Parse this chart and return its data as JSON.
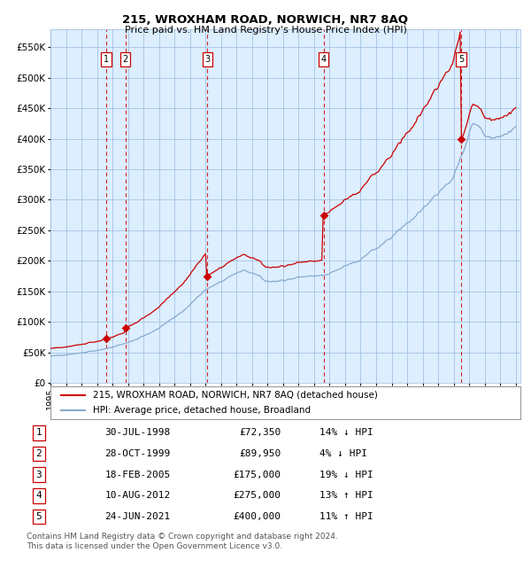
{
  "title": "215, WROXHAM ROAD, NORWICH, NR7 8AQ",
  "subtitle": "Price paid vs. HM Land Registry's House Price Index (HPI)",
  "ylim": [
    0,
    580000
  ],
  "yticks": [
    0,
    50000,
    100000,
    150000,
    200000,
    250000,
    300000,
    350000,
    400000,
    450000,
    500000,
    550000
  ],
  "ytick_labels": [
    "£0",
    "£50K",
    "£100K",
    "£150K",
    "£200K",
    "£250K",
    "£300K",
    "£350K",
    "£400K",
    "£450K",
    "£500K",
    "£550K"
  ],
  "xlim": [
    1995,
    2025.5
  ],
  "background_color": "#ddeeff",
  "red_line_color": "#cc0000",
  "blue_line_color": "#88aacc",
  "sale_marker_color": "#cc0000",
  "vline_color": "#cc0000",
  "grid_color": "#99bbdd",
  "transactions": [
    {
      "num": 1,
      "date_dec": 1998.58,
      "price": 72350,
      "label": "30-JUL-1998",
      "price_str": "£72,350",
      "pct": "14%",
      "dir": "↓"
    },
    {
      "num": 2,
      "date_dec": 1999.83,
      "price": 89950,
      "label": "28-OCT-1999",
      "price_str": "£89,950",
      "pct": "4%",
      "dir": "↓"
    },
    {
      "num": 3,
      "date_dec": 2005.12,
      "price": 175000,
      "label": "18-FEB-2005",
      "price_str": "£175,000",
      "pct": "19%",
      "dir": "↓"
    },
    {
      "num": 4,
      "date_dec": 2012.61,
      "price": 275000,
      "label": "10-AUG-2012",
      "price_str": "£275,000",
      "pct": "13%",
      "dir": "↑"
    },
    {
      "num": 5,
      "date_dec": 2021.48,
      "price": 400000,
      "label": "24-JUN-2021",
      "price_str": "£400,000",
      "pct": "11%",
      "dir": "↑"
    }
  ],
  "legend_line1": "215, WROXHAM ROAD, NORWICH, NR7 8AQ (detached house)",
  "legend_line2": "HPI: Average price, detached house, Broadland",
  "footnote1": "Contains HM Land Registry data © Crown copyright and database right 2024.",
  "footnote2": "This data is licensed under the Open Government Licence v3.0."
}
